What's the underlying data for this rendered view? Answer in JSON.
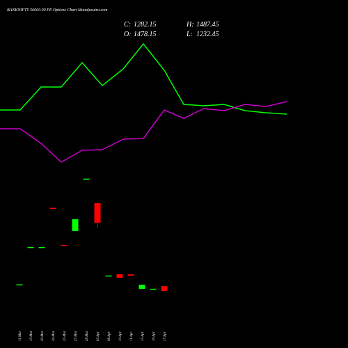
{
  "chart_data": {
    "type": "candlestick",
    "title": "BANKNIFTY 56000.00 PE Options Chart Munafasutra.com",
    "info": {
      "close_label": "C:",
      "close": "1282.15",
      "high_label": "H:",
      "high": "1487.45",
      "open_label": "O:",
      "open": "1478.15",
      "low_label": "L:",
      "low": "1232.45"
    },
    "categories": [
      "11 Mar",
      "19 Mar",
      "20 Mar",
      "24 Mar",
      "25 Mar",
      "27 Mar",
      "28 Mar",
      "03 Apr",
      "08 Apr",
      "10 Apr",
      "11 Apr",
      "15 Apr",
      "16 Apr",
      "17 Apr"
    ],
    "candles": [
      {
        "open": 655,
        "close": 662
      },
      {
        "open": 1034,
        "close": 1038
      },
      {
        "open": 1034,
        "close": 1038
      },
      {
        "open": 1432,
        "close": 1426
      },
      {
        "open": 1059,
        "close": 1055
      },
      {
        "open": 1198,
        "close": 1317
      },
      {
        "open": 1721,
        "close": 1725
      },
      {
        "open": 1478.15,
        "close": 1282.15,
        "high": 1487.45,
        "low": 1232.45
      },
      {
        "open": 747,
        "close": 751
      },
      {
        "open": 763,
        "close": 728
      },
      {
        "open": 763,
        "close": 749
      },
      {
        "open": 616,
        "close": 658
      },
      {
        "open": 614,
        "close": 618
      },
      {
        "open": 644,
        "close": 595
      }
    ],
    "up_color": "#00ff00",
    "down_color": "#ff0000",
    "ylim": [
      512,
      1772
    ],
    "lines": {
      "x": [
        0,
        29,
        59,
        88,
        118,
        147,
        177,
        206,
        236,
        264,
        293,
        322,
        352,
        382,
        412
      ],
      "ylim": [
        0,
        500
      ],
      "series": [
        {
          "color": "#00ff00",
          "values": [
            342,
            342,
            375,
            375,
            410,
            377,
            401,
            437,
            399,
            350,
            348,
            350,
            341,
            338,
            336
          ]
        },
        {
          "color": "#cc00cc",
          "values": [
            315,
            315,
            294,
            267,
            284,
            285,
            300,
            301,
            342,
            330,
            344,
            341,
            350,
            347,
            354
          ]
        }
      ]
    }
  }
}
